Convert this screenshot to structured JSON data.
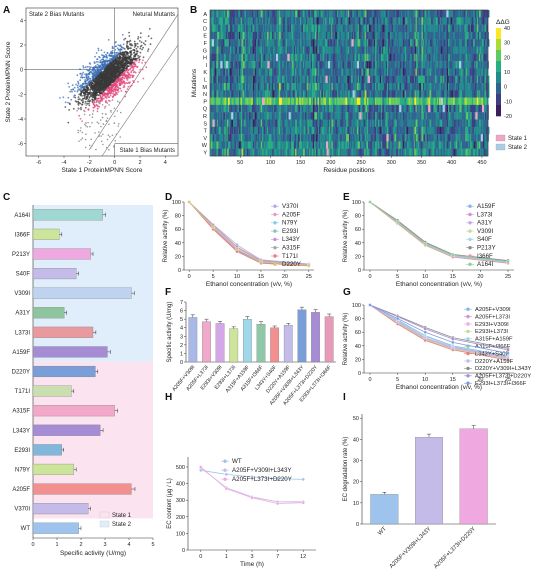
{
  "figure": {
    "panel_labels": [
      "A",
      "B",
      "C",
      "D",
      "E",
      "F",
      "G",
      "H",
      "I"
    ]
  },
  "chart_data": [
    {
      "id": "A",
      "type": "scatter",
      "xlabel": "State 1 ProteinMPNN Score",
      "ylabel": "State 2 ProteinMPNN Score",
      "xticks": [
        -6,
        -4,
        -2,
        0,
        2,
        4
      ],
      "yticks": [
        -6,
        -4,
        -2,
        0,
        2,
        4
      ],
      "xlim": [
        -7,
        5
      ],
      "ylim": [
        -7,
        5
      ],
      "annotations": [
        "State 2 Bias Mutants",
        "Netural Mutants",
        "State 1 Bias Mutants"
      ],
      "colors": {
        "neutral": "#3a3a3a",
        "state2": "#3b6fb5",
        "state1": "#e0457b",
        "sparse": "#9a9a9a"
      }
    },
    {
      "id": "B",
      "type": "heatmap",
      "xlabel": "Residue positions",
      "ylabel": "Mutations",
      "rows": [
        "A",
        "C",
        "D",
        "E",
        "F",
        "G",
        "H",
        "I",
        "K",
        "L",
        "M",
        "N",
        "P",
        "Q",
        "R",
        "S",
        "T",
        "V",
        "W",
        "Y"
      ],
      "xticks": [
        50,
        100,
        150,
        200,
        250,
        300,
        350,
        400,
        450
      ],
      "colorbar_label": "ΔΔG",
      "colorbar_ticks": [
        40,
        30,
        20,
        10,
        0,
        -10,
        -20
      ],
      "legend": [
        "State 1",
        "State 2"
      ],
      "colors": {
        "state1": "#f0a6c6",
        "state2": "#a9cde8"
      }
    },
    {
      "id": "C",
      "type": "bar",
      "orientation": "horizontal",
      "xlabel": "Specific  activity (U/mg)",
      "xticks": [
        0,
        1,
        2,
        3,
        4,
        5
      ],
      "xlim": [
        0,
        5
      ],
      "categories": [
        "A164I",
        "I366F",
        "P213Y",
        "S40F",
        "V309I",
        "A31Y",
        "L373I",
        "A159F",
        "D220Y",
        "T171I",
        "A315F",
        "L343Y",
        "E293I",
        "N79Y",
        "A205F",
        "V370I",
        "WT"
      ],
      "values": [
        2.9,
        1.1,
        2.4,
        1.8,
        4.1,
        1.3,
        2.5,
        3.1,
        2.6,
        1.6,
        3.4,
        2.8,
        1.2,
        1.7,
        4.1,
        2.3,
        1.9
      ],
      "errors": [
        0.12,
        0.1,
        0.1,
        0.1,
        0.12,
        0.1,
        0.12,
        0.12,
        0.1,
        0.1,
        0.12,
        0.12,
        0.08,
        0.1,
        0.15,
        0.1,
        0.1
      ],
      "bar_colors": [
        "#9fd8d3",
        "#cde59a",
        "#f0a9e0",
        "#c5bbe8",
        "#bfd3f0",
        "#8fc59e",
        "#e89a9e",
        "#a68cd4",
        "#7a9ed8",
        "#c9dfb0",
        "#f2a8c8",
        "#a68cd4",
        "#7fb8dc",
        "#cde59a",
        "#f28f8f",
        "#c5bbe8",
        "#9ec3ec"
      ],
      "legend": [
        "State 1",
        "State 2"
      ],
      "legend_colors": [
        "#fbe3f0",
        "#dfeefa"
      ]
    },
    {
      "id": "D",
      "type": "line",
      "xlabel": "Ethanol concentration (v/v, %)",
      "ylabel": "Relative activity (%)",
      "x": [
        0,
        5,
        10,
        15,
        25
      ],
      "xticks": [
        0,
        5,
        10,
        15,
        20,
        25
      ],
      "yticks": [
        0,
        20,
        40,
        60,
        80,
        100
      ],
      "ylim": [
        0,
        100
      ],
      "series": [
        {
          "name": "V370I",
          "values": [
            100,
            67,
            37,
            15,
            9
          ],
          "color": "#b8a6e8"
        },
        {
          "name": "A205F",
          "values": [
            100,
            64,
            33,
            13,
            8
          ],
          "color": "#e89ac8"
        },
        {
          "name": "N79Y",
          "values": [
            100,
            63,
            30,
            12,
            7
          ],
          "color": "#8fc7e8"
        },
        {
          "name": "E293I",
          "values": [
            100,
            61,
            28,
            11,
            6
          ],
          "color": "#7ec9c0"
        },
        {
          "name": "L343Y",
          "values": [
            100,
            62,
            29,
            12,
            7
          ],
          "color": "#c68fe0"
        },
        {
          "name": "A315F",
          "values": [
            100,
            66,
            34,
            14,
            8
          ],
          "color": "#a8a8a8"
        },
        {
          "name": "T171I",
          "values": [
            100,
            60,
            27,
            10,
            6
          ],
          "color": "#e88080"
        },
        {
          "name": "D220Y",
          "values": [
            100,
            63,
            31,
            12,
            7
          ],
          "color": "#d8c47a"
        }
      ]
    },
    {
      "id": "E",
      "type": "line",
      "xlabel": "Ethanol concentration (v/v, %)",
      "ylabel": "Relative activity (%)",
      "x": [
        0,
        5,
        10,
        15,
        25
      ],
      "xticks": [
        0,
        5,
        10,
        15,
        20,
        25
      ],
      "yticks": [
        0,
        20,
        40,
        60,
        80,
        100
      ],
      "ylim": [
        0,
        100
      ],
      "series": [
        {
          "name": "A159F",
          "values": [
            100,
            72,
            40,
            22,
            13
          ],
          "color": "#8fb0e8"
        },
        {
          "name": "L373I",
          "values": [
            100,
            69,
            37,
            20,
            11
          ],
          "color": "#d68fd8"
        },
        {
          "name": "A31Y",
          "values": [
            100,
            71,
            39,
            21,
            12
          ],
          "color": "#c0a8e8"
        },
        {
          "name": "V309I",
          "values": [
            100,
            68,
            36,
            19,
            10
          ],
          "color": "#c8d898"
        },
        {
          "name": "S40F",
          "values": [
            100,
            70,
            38,
            20,
            11
          ],
          "color": "#9fd8e8"
        },
        {
          "name": "P213Y",
          "values": [
            100,
            73,
            41,
            23,
            14
          ],
          "color": "#8c8c8c"
        },
        {
          "name": "I366F",
          "values": [
            100,
            69,
            37,
            19,
            10
          ],
          "color": "#e89aa8"
        },
        {
          "name": "A164I",
          "values": [
            100,
            71,
            39,
            22,
            12
          ],
          "color": "#8fcf9a"
        }
      ]
    },
    {
      "id": "F",
      "type": "bar",
      "ylabel": "Specific activity (U/mg)",
      "yticks": [
        0,
        1,
        2,
        3,
        4,
        5,
        6,
        7
      ],
      "ylim": [
        0,
        7
      ],
      "categories": [
        "A205F+V309I",
        "A205F+L373I",
        "E293I+V309I",
        "E293I+L373I",
        "A315F+A159F",
        "A315F+I366F",
        "L343Y+S40F",
        "D220Y+A159F",
        "A205F+V309I+L343Y",
        "A205F+L373I+D220Y",
        "E293I+L373I+I366F"
      ],
      "values": [
        5.2,
        4.7,
        4.5,
        3.9,
        5.0,
        4.4,
        4.0,
        4.3,
        6.1,
        5.8,
        5.3
      ],
      "errors": [
        0.3,
        0.3,
        0.25,
        0.2,
        0.3,
        0.3,
        0.2,
        0.2,
        0.3,
        0.3,
        0.3
      ],
      "bar_colors": [
        "#aab8e8",
        "#f0a9c8",
        "#d4a8e8",
        "#cde59a",
        "#9fd8e8",
        "#8fc8a8",
        "#f28f8f",
        "#c5bbe8",
        "#7a9ed8",
        "#a68cd4",
        "#e89ab8"
      ]
    },
    {
      "id": "G",
      "type": "line",
      "xlabel": "Ethanol concentration (v/v, %)",
      "ylabel": "Relative activity (%)",
      "x": [
        0,
        5,
        10,
        15,
        25
      ],
      "xticks": [
        0,
        5,
        10,
        15,
        20,
        25
      ],
      "yticks": [
        0,
        20,
        40,
        60,
        80,
        100
      ],
      "ylim": [
        0,
        100
      ],
      "series": [
        {
          "name": "A205F+V309I",
          "values": [
            100,
            78,
            55,
            40,
            25
          ],
          "color": "#8fb0e8"
        },
        {
          "name": "A205F+L373I",
          "values": [
            100,
            76,
            52,
            38,
            23
          ],
          "color": "#d68fd8"
        },
        {
          "name": "E293I+V309I",
          "values": [
            100,
            74,
            50,
            36,
            21
          ],
          "color": "#f0a9e0"
        },
        {
          "name": "E293I+L373I",
          "values": [
            100,
            73,
            49,
            35,
            20
          ],
          "color": "#c8d898"
        },
        {
          "name": "A315F+A159F",
          "values": [
            100,
            77,
            54,
            39,
            24
          ],
          "color": "#9fd8e8"
        },
        {
          "name": "A315F+I366F",
          "values": [
            100,
            75,
            51,
            37,
            22
          ],
          "color": "#8fcf9a"
        },
        {
          "name": "L343Y+S40F",
          "values": [
            100,
            72,
            48,
            34,
            19
          ],
          "color": "#e88080"
        },
        {
          "name": "D220Y+A159F",
          "values": [
            100,
            75,
            52,
            37,
            22
          ],
          "color": "#c5bbe8"
        },
        {
          "name": "D220Y+V309I+L343Y",
          "values": [
            100,
            84,
            67,
            52,
            36
          ],
          "color": "#8c8c8c"
        },
        {
          "name": "A205F+L373I+D220Y",
          "values": [
            100,
            83,
            65,
            50,
            34
          ],
          "color": "#a68cd4"
        },
        {
          "name": "E293I+L373I+I366F",
          "values": [
            100,
            80,
            60,
            45,
            29
          ],
          "color": "#7a9ed8"
        }
      ]
    },
    {
      "id": "H",
      "type": "line",
      "xlabel": "Time (h)",
      "ylabel": "EC content (μg / L)",
      "x": [
        0,
        1,
        3,
        7,
        12
      ],
      "xticks": [
        0,
        1,
        3,
        7,
        12
      ],
      "yticks": [
        0,
        100,
        200,
        300,
        400,
        500
      ],
      "ylim": [
        0,
        560
      ],
      "series": [
        {
          "name": "WT",
          "values": [
            480,
            455,
            440,
            430,
            425
          ],
          "color": "#9ec3ec"
        },
        {
          "name": "A205F+V309I+L343Y",
          "values": [
            495,
            375,
            320,
            290,
            290
          ],
          "color": "#c5bbe8"
        },
        {
          "name": "A205F+L373I+D220Y",
          "values": [
            500,
            370,
            315,
            280,
            285
          ],
          "color": "#f0a9e0"
        }
      ]
    },
    {
      "id": "I",
      "type": "bar",
      "ylabel": "EC degradation rate (%)",
      "yticks": [
        0,
        10,
        20,
        30,
        40,
        50
      ],
      "ylim": [
        0,
        52
      ],
      "categories": [
        "WT",
        "A205F+V309I+L343Y",
        "A205F+L373I+D220Y"
      ],
      "values": [
        14,
        41,
        45
      ],
      "errors": [
        1,
        1.5,
        1.5
      ],
      "bar_colors": [
        "#9ec3ec",
        "#c5bbe8",
        "#f0a9e0"
      ]
    }
  ]
}
